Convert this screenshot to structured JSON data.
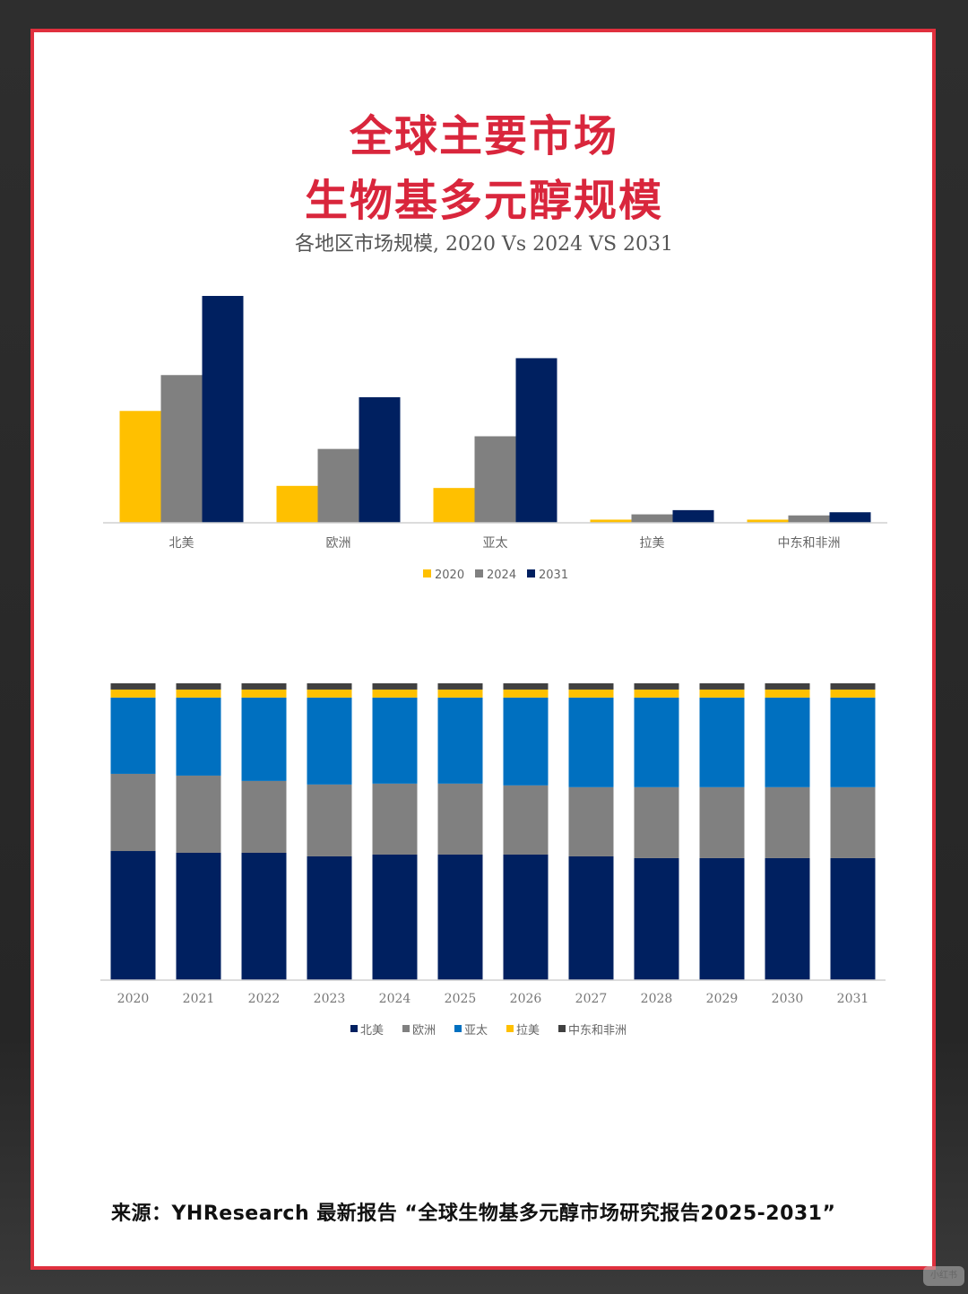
{
  "title_line1": "全球主要市场",
  "title_line2": "生物基多元醇规模",
  "source_text": "来源：YHResearch 最新报告 “全球生物基多元醇市场研究报告2025-2031”",
  "watermark": "小红书",
  "colors": {
    "frame": "#e0303e",
    "title": "#d9263c",
    "y2020": "#ffc000",
    "y2024": "#808080",
    "y2031": "#002060",
    "north_america": "#002060",
    "europe": "#808080",
    "asia_pacific": "#0070c0",
    "latin_america": "#ffc000",
    "mea": "#404040"
  },
  "chart_data": [
    {
      "type": "bar",
      "title": "各地区市场规模, 2020 Vs 2024 VS 2031",
      "categories": [
        "北美",
        "欧洲",
        "亚太",
        "拉美",
        "中东和非洲"
      ],
      "series": [
        {
          "name": "2020",
          "values": [
            106,
            35,
            33,
            3,
            3
          ]
        },
        {
          "name": "2024",
          "values": [
            140,
            70,
            82,
            8,
            7
          ]
        },
        {
          "name": "2031",
          "values": [
            215,
            119,
            156,
            12,
            10
          ]
        }
      ],
      "legend": "bottom",
      "grid": false
    },
    {
      "type": "bar",
      "stacked": "percent",
      "categories": [
        "2020",
        "2021",
        "2022",
        "2023",
        "2024",
        "2025",
        "2026",
        "2027",
        "2028",
        "2029",
        "2030",
        "2031"
      ],
      "series": [
        {
          "name": "北美",
          "values": [
            43.5,
            42.9,
            42.9,
            41.7,
            42.3,
            42.3,
            42.3,
            41.7,
            41.1,
            41.1,
            41.1,
            41.1
          ]
        },
        {
          "name": "欧洲",
          "values": [
            26.0,
            26.0,
            24.2,
            24.2,
            23.9,
            23.9,
            23.3,
            23.3,
            23.9,
            23.9,
            23.9,
            23.9
          ]
        },
        {
          "name": "亚太",
          "values": [
            25.7,
            26.3,
            28.1,
            29.3,
            29.0,
            29.0,
            29.6,
            30.2,
            30.2,
            30.2,
            30.2,
            30.2
          ]
        },
        {
          "name": "拉美",
          "values": [
            2.7,
            2.7,
            2.7,
            2.7,
            2.7,
            2.7,
            2.7,
            2.7,
            2.7,
            2.7,
            2.7,
            2.7
          ]
        },
        {
          "name": "中东和非洲",
          "values": [
            2.1,
            2.1,
            2.1,
            2.1,
            2.1,
            2.1,
            2.1,
            2.1,
            2.1,
            2.1,
            2.1,
            2.1
          ]
        }
      ],
      "ylim": [
        0,
        100
      ],
      "legend": "bottom",
      "grid": false
    }
  ]
}
